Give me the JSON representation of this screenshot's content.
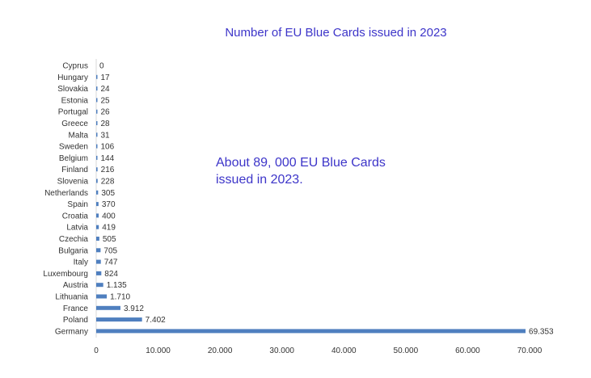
{
  "chart_data": {
    "type": "bar",
    "orientation": "horizontal",
    "title": "Number of EU Blue Cards issued in 2023",
    "annotation": "About 89, 000 EU Blue Cards issued in 2023.",
    "xlabel": "",
    "ylabel": "",
    "xlim": [
      0,
      70000
    ],
    "grid": false,
    "bar_color": "#4f7fbf",
    "title_color": "#3d35c9",
    "categories": [
      "Cyprus",
      "Hungary",
      "Slovakia",
      "Estonia",
      "Portugal",
      "Greece",
      "Malta",
      "Sweden",
      "Belgium",
      "Finland",
      "Slovenia",
      "Netherlands",
      "Spain",
      "Croatia",
      "Latvia",
      "Czechia",
      "Bulgaria",
      "Italy",
      "Luxembourg",
      "Austria",
      "Lithuania",
      "France",
      "Poland",
      "Germany"
    ],
    "values": [
      0,
      17,
      24,
      25,
      26,
      28,
      31,
      106,
      144,
      216,
      228,
      305,
      370,
      400,
      419,
      505,
      705,
      747,
      824,
      1135,
      1710,
      3912,
      7402,
      69353
    ],
    "value_labels": [
      "0",
      "17",
      "24",
      "25",
      "26",
      "28",
      "31",
      "106",
      "144",
      "216",
      "228",
      "305",
      "370",
      "400",
      "419",
      "505",
      "705",
      "747",
      "824",
      "1.135",
      "1.710",
      "3.912",
      "7.402",
      "69.353"
    ],
    "x_ticks": [
      0,
      10000,
      20000,
      30000,
      40000,
      50000,
      60000,
      70000
    ],
    "x_tick_labels": [
      "0",
      "10.000",
      "20.000",
      "30.000",
      "40.000",
      "50.000",
      "60.000",
      "70.000"
    ]
  }
}
